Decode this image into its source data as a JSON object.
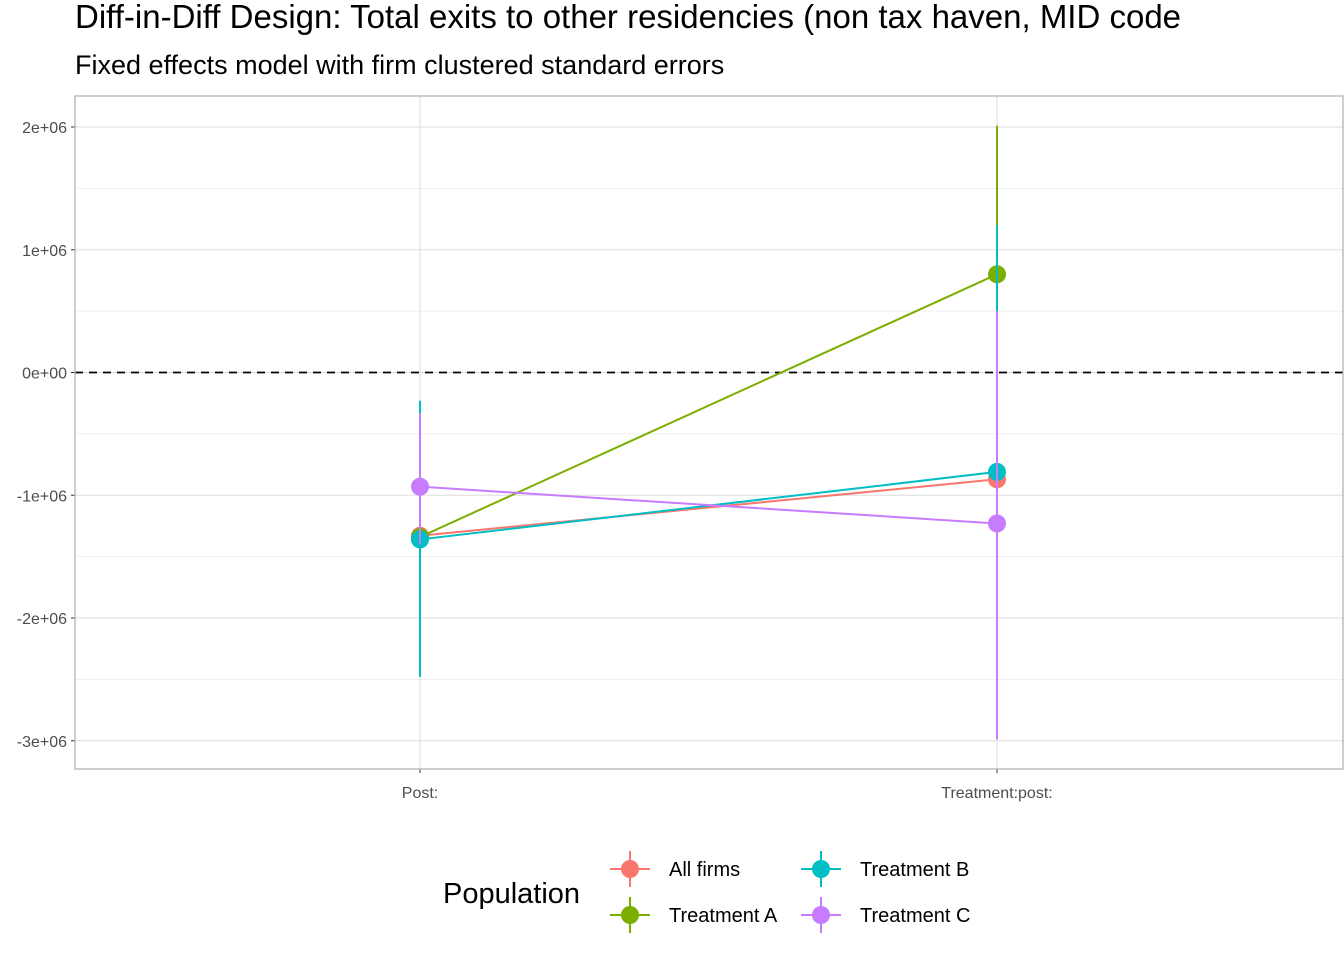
{
  "chart_data": {
    "type": "scatter",
    "title": "Diff-in-Diff Design: Total exits to other residencies (non tax haven, MID code",
    "subtitle": "Fixed effects model with firm clustered standard errors",
    "xlabel": "",
    "ylabel": "",
    "categories": [
      "Post:",
      "Treatment:post:"
    ],
    "ylim": [
      -3250000,
      2250000
    ],
    "yticks": [
      {
        "value": 2000000,
        "label": "2e+06"
      },
      {
        "value": 1000000,
        "label": "1e+06"
      },
      {
        "value": 0,
        "label": "0e+00"
      },
      {
        "value": -1000000,
        "label": "-1e+06"
      },
      {
        "value": -2000000,
        "label": "-2e+06"
      },
      {
        "value": -3000000,
        "label": "-3e+06"
      }
    ],
    "reference_line": {
      "y": 0,
      "style": "dashed"
    },
    "grid": true,
    "legend_title": "Population",
    "legend_position": "bottom",
    "series": [
      {
        "name": "All firms",
        "color": "#F8766D",
        "values": [
          -1330000,
          -870000
        ],
        "lower": [
          -1330000,
          -870000
        ],
        "upper": [
          -1330000,
          -870000
        ]
      },
      {
        "name": "Treatment A",
        "color": "#7CAE00",
        "values": [
          -1340000,
          800000
        ],
        "lower": [
          -1340000,
          800000
        ],
        "upper": [
          -1340000,
          2010000
        ]
      },
      {
        "name": "Treatment B",
        "color": "#00BFC4",
        "values": [
          -1360000,
          -810000
        ],
        "lower": [
          -2480000,
          -810000
        ],
        "upper": [
          -230000,
          1200000
        ]
      },
      {
        "name": "Treatment C",
        "color": "#C77CFF",
        "values": [
          -930000,
          -1230000
        ],
        "lower": [
          -1400000,
          -2990000
        ],
        "upper": [
          -330000,
          500000
        ]
      }
    ]
  }
}
